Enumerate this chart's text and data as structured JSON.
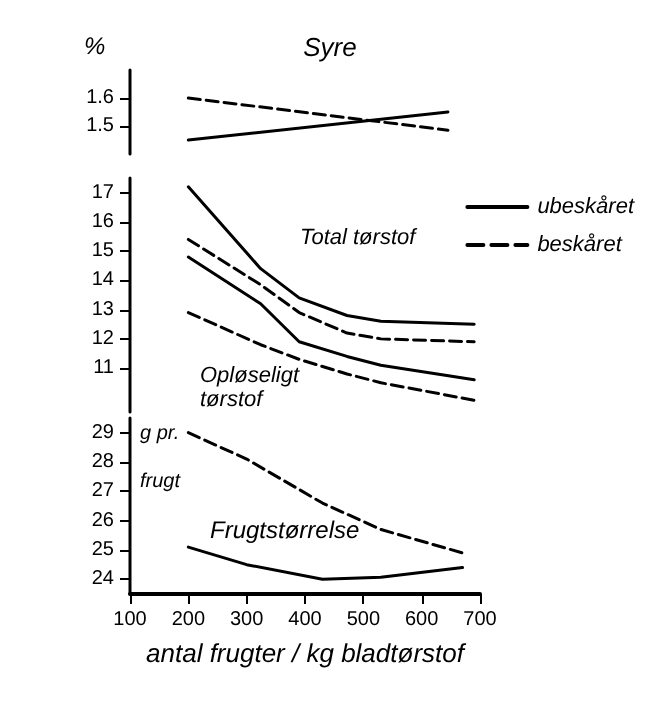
{
  "chart_data": [
    {
      "type": "line",
      "title": "Syre",
      "ylabel": "%",
      "x": [
        200,
        645
      ],
      "ylim": [
        1.4,
        1.7
      ],
      "yticks": [
        1.5,
        1.6
      ],
      "xlim": [
        100,
        700
      ],
      "tick_labels": "y",
      "grid": false,
      "legend": false,
      "marker": "none",
      "series": [
        {
          "color": "#000000",
          "line_style": "solid",
          "values": [
            1.45,
            1.55
          ]
        },
        {
          "color": "#000000",
          "line_style": "dashed",
          "values": [
            1.6,
            1.485
          ]
        }
      ]
    },
    {
      "type": "line",
      "x": [
        200,
        324,
        390,
        472,
        530,
        690
      ],
      "ylim": [
        9.5,
        17.5
      ],
      "yticks": [
        11,
        12,
        13,
        14,
        15,
        16,
        17
      ],
      "xlim": [
        100,
        700
      ],
      "tick_labels": "y",
      "grid": false,
      "legend": "top right",
      "marker": "none",
      "annotations": [
        "Total tørstof",
        "Opløseligt tørstof"
      ],
      "series": [
        {
          "name": "ubeskåret",
          "color": "#000000",
          "line_style": "solid",
          "values": [
            17.2,
            14.4,
            13.4,
            12.8,
            12.6,
            12.5
          ]
        },
        {
          "name": "beskåret",
          "color": "#000000",
          "line_style": "dashed",
          "values": [
            15.4,
            13.85,
            12.9,
            12.2,
            12.0,
            11.9
          ]
        },
        {
          "color": "#000000",
          "line_style": "solid",
          "values": [
            14.8,
            13.2,
            11.9,
            11.4,
            11.1,
            10.6
          ]
        },
        {
          "color": "#000000",
          "line_style": "dashed",
          "values": [
            12.9,
            11.8,
            11.3,
            10.8,
            10.5,
            9.9
          ]
        }
      ]
    },
    {
      "type": "line",
      "title": "Frugtstørrelse",
      "ylabel": "g pr. frugt",
      "xlabel": "antal frugter / kg bladtørstof",
      "x": [
        200,
        300,
        430,
        530,
        670
      ],
      "ylim": [
        23.5,
        29.5
      ],
      "yticks": [
        24,
        25,
        26,
        27,
        28,
        29
      ],
      "xlim": [
        100,
        700
      ],
      "xticks": [
        100,
        200,
        300,
        400,
        500,
        600,
        700
      ],
      "grid": false,
      "legend": false,
      "marker": "none",
      "series": [
        {
          "color": "#000000",
          "line_style": "solid",
          "values": [
            25.1,
            24.5,
            24.0,
            24.07,
            24.4
          ]
        },
        {
          "color": "#000000",
          "line_style": "dashed",
          "values": [
            29.0,
            28.1,
            26.6,
            25.7,
            24.9
          ]
        }
      ]
    }
  ]
}
